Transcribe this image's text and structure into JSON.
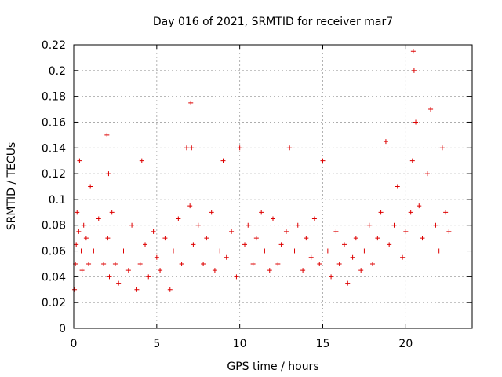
{
  "chart_data": {
    "type": "scatter",
    "title": "Day 016 of 2021, SRMTID for receiver mar7",
    "xlabel": "GPS time / hours",
    "ylabel": "SRMTID / TECUs",
    "xlim": [
      0,
      24
    ],
    "ylim": [
      0,
      0.22
    ],
    "xticks": [
      0,
      5,
      10,
      15,
      20
    ],
    "yticks": [
      0,
      0.02,
      0.04,
      0.06,
      0.08,
      0.1,
      0.12,
      0.14,
      0.16,
      0.18,
      0.2,
      0.22
    ],
    "grid": true,
    "marker": "+",
    "color": "#dd0000",
    "series": [
      {
        "name": "mar7",
        "x": [
          0.05,
          0.1,
          0.15,
          0.2,
          0.3,
          0.35,
          0.45,
          0.5,
          0.6,
          0.75,
          0.9,
          1.0,
          1.2,
          1.5,
          1.8,
          2.0,
          2.05,
          2.1,
          2.15,
          2.3,
          2.5,
          2.7,
          3.0,
          3.3,
          3.5,
          3.8,
          4.0,
          4.1,
          4.3,
          4.5,
          4.8,
          5.0,
          5.2,
          5.5,
          5.8,
          6.0,
          6.3,
          6.5,
          6.8,
          7.0,
          7.05,
          7.1,
          7.2,
          7.5,
          7.8,
          8.0,
          8.3,
          8.5,
          8.8,
          9.0,
          9.2,
          9.5,
          9.8,
          10.0,
          10.3,
          10.5,
          10.8,
          11.0,
          11.3,
          11.5,
          11.8,
          12.0,
          12.3,
          12.5,
          12.8,
          13.0,
          13.3,
          13.5,
          13.8,
          14.0,
          14.3,
          14.5,
          14.8,
          15.0,
          15.3,
          15.5,
          15.8,
          16.0,
          16.3,
          16.5,
          16.8,
          17.0,
          17.3,
          17.5,
          17.8,
          18.0,
          18.3,
          18.5,
          18.8,
          19.0,
          19.3,
          19.5,
          19.8,
          20.0,
          20.3,
          20.4,
          20.45,
          20.5,
          20.6,
          20.8,
          21.0,
          21.3,
          21.5,
          21.8,
          22.0,
          22.2,
          22.4,
          22.6
        ],
        "y": [
          0.03,
          0.05,
          0.065,
          0.09,
          0.075,
          0.13,
          0.06,
          0.045,
          0.08,
          0.07,
          0.05,
          0.11,
          0.06,
          0.085,
          0.05,
          0.15,
          0.07,
          0.12,
          0.04,
          0.09,
          0.05,
          0.035,
          0.06,
          0.045,
          0.08,
          0.03,
          0.05,
          0.13,
          0.065,
          0.04,
          0.075,
          0.055,
          0.045,
          0.07,
          0.03,
          0.06,
          0.085,
          0.05,
          0.14,
          0.095,
          0.175,
          0.14,
          0.065,
          0.08,
          0.05,
          0.07,
          0.09,
          0.045,
          0.06,
          0.13,
          0.055,
          0.075,
          0.04,
          0.14,
          0.065,
          0.08,
          0.05,
          0.07,
          0.09,
          0.06,
          0.045,
          0.085,
          0.05,
          0.065,
          0.075,
          0.14,
          0.06,
          0.08,
          0.045,
          0.07,
          0.055,
          0.085,
          0.05,
          0.13,
          0.06,
          0.04,
          0.075,
          0.05,
          0.065,
          0.035,
          0.055,
          0.07,
          0.045,
          0.06,
          0.08,
          0.05,
          0.07,
          0.09,
          0.145,
          0.065,
          0.08,
          0.11,
          0.055,
          0.075,
          0.09,
          0.13,
          0.215,
          0.2,
          0.16,
          0.095,
          0.07,
          0.12,
          0.17,
          0.08,
          0.06,
          0.14,
          0.09,
          0.075
        ]
      }
    ]
  }
}
